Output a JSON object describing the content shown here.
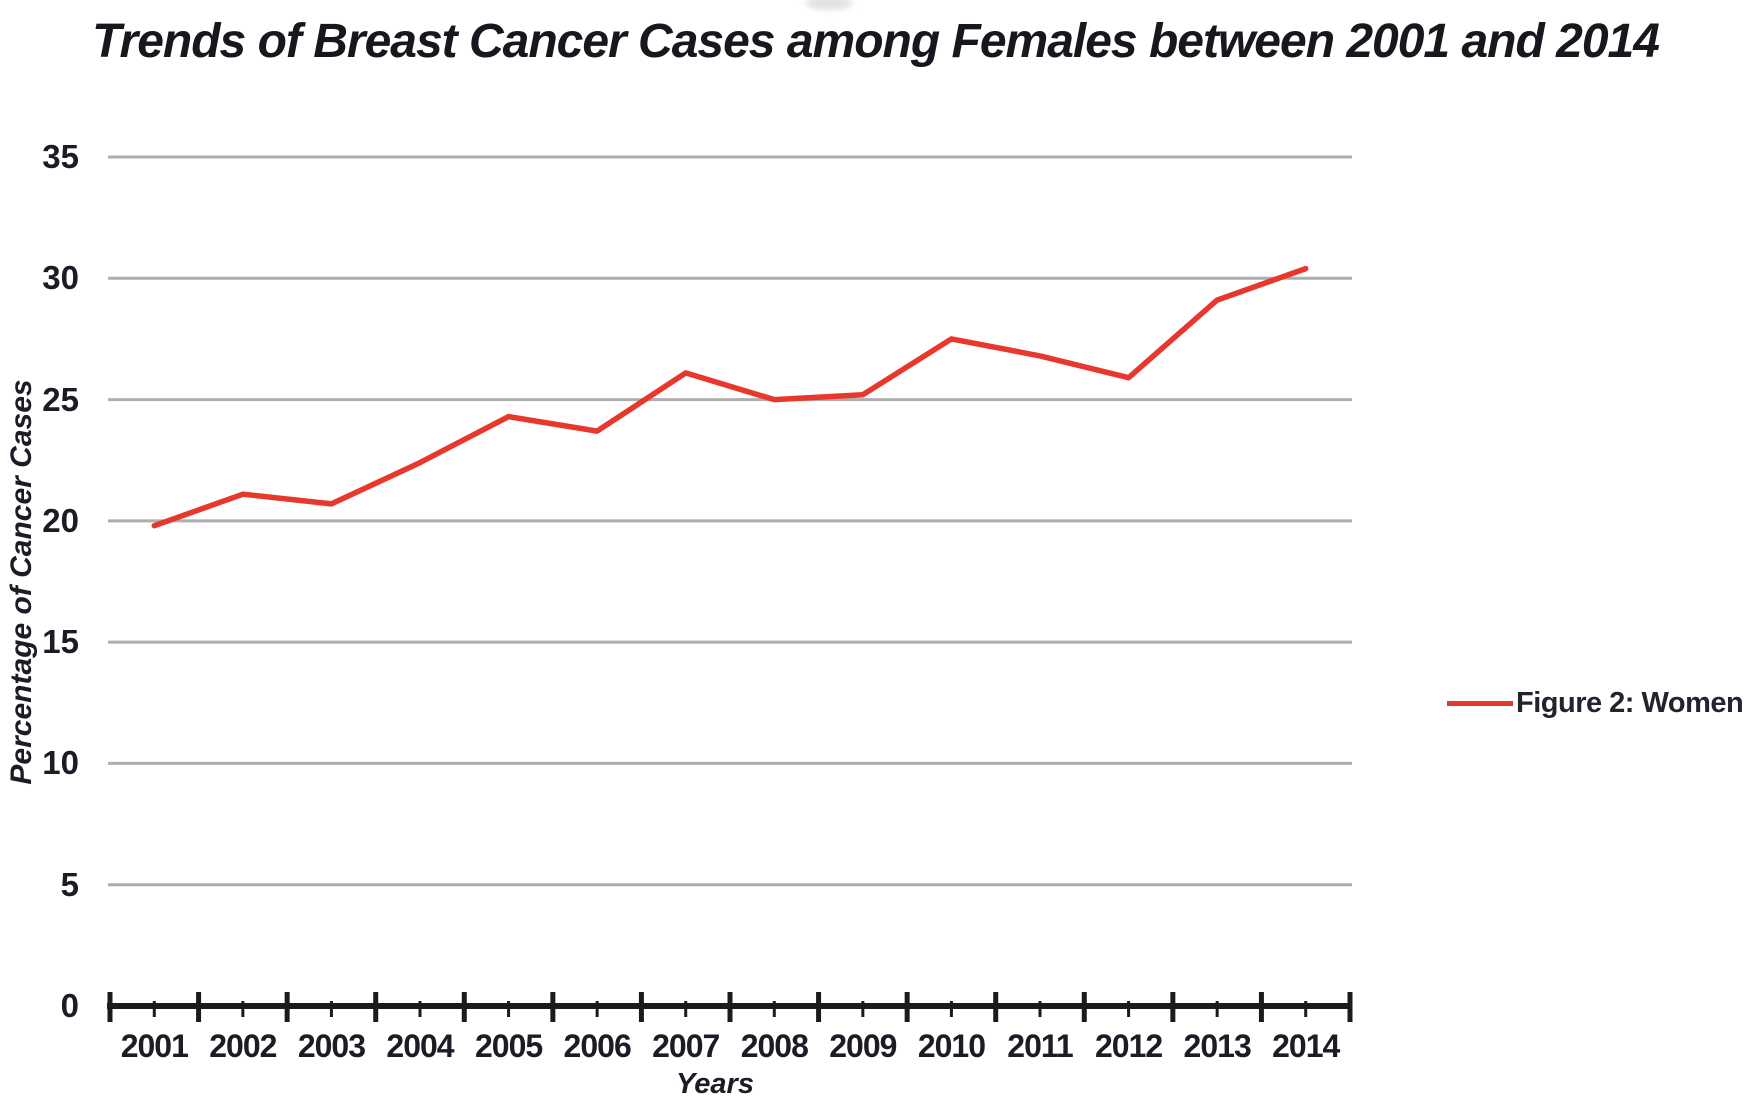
{
  "chart_data": {
    "type": "line",
    "title": "Trends of Breast Cancer Cases among Females between 2001 and 2014",
    "xlabel": "Years",
    "ylabel": "Percentage of Cancer Cases",
    "x": [
      "2001",
      "2002",
      "2003",
      "2004",
      "2005",
      "2006",
      "2007",
      "2008",
      "2009",
      "2010",
      "2011",
      "2012",
      "2013",
      "2014"
    ],
    "series": [
      {
        "name": "Figure 2: Women",
        "color": "#e8382d",
        "values": [
          19.8,
          21.1,
          20.7,
          22.4,
          24.3,
          23.7,
          26.1,
          25.0,
          25.2,
          27.5,
          26.8,
          25.9,
          29.1,
          30.4
        ]
      }
    ],
    "ylim": [
      0,
      35
    ],
    "yticks": [
      0,
      5,
      10,
      15,
      20,
      25,
      30,
      35
    ],
    "grid": true,
    "grid_color": "#aeaeae",
    "axis_color": "#1b1b1b",
    "tick_label_color": "#1c1c26",
    "legend_position": "right"
  }
}
